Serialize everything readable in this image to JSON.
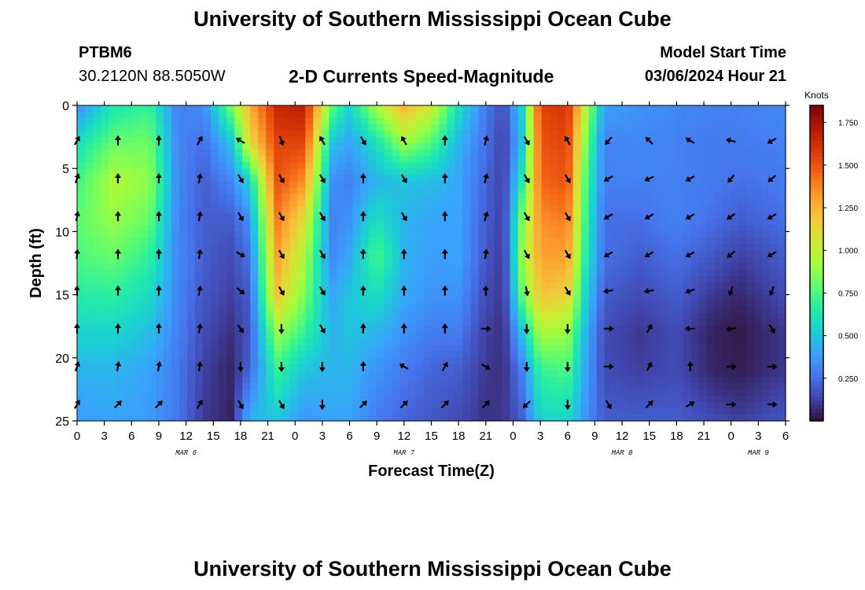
{
  "header": {
    "title": "University of Southern Mississippi Ocean Cube",
    "station": "PTBM6",
    "coords": "30.2120N  88.5050W",
    "subtitle": "2-D Currents Speed-Magnitude",
    "model_start_label": "Model Start Time",
    "model_start_value": "03/06/2024 Hour 21"
  },
  "footer": {
    "title": "University of Southern Mississippi Ocean Cube"
  },
  "chart_data": {
    "type": "heatmap",
    "title": "2-D Currents Speed-Magnitude",
    "xlabel": "Forecast Time(Z)",
    "ylabel": "Depth (ft)",
    "x_hours": [
      0,
      3,
      6,
      9,
      12,
      15,
      18,
      21,
      24,
      27,
      30,
      33,
      36,
      39,
      42,
      45,
      48,
      51,
      54,
      57,
      60,
      63,
      66,
      69,
      72,
      75,
      78
    ],
    "x_tick_labels": [
      "0",
      "3",
      "6",
      "9",
      "12",
      "15",
      "18",
      "21",
      "0",
      "3",
      "6",
      "9",
      "12",
      "15",
      "18",
      "21",
      "0",
      "3",
      "6",
      "9",
      "12",
      "15",
      "18",
      "21",
      "0",
      "3",
      "6"
    ],
    "date_labels": [
      {
        "text": "MAR 6",
        "hour": 12
      },
      {
        "text": "MAR 7",
        "hour": 36
      },
      {
        "text": "MAR 8",
        "hour": 60
      },
      {
        "text": "MAR 9",
        "hour": 75
      }
    ],
    "depth_ticks": [
      0,
      5,
      10,
      15,
      20,
      25
    ],
    "depth_labels": [
      "0",
      "5",
      "10",
      "15",
      "20",
      "25"
    ],
    "ylim": [
      0,
      25
    ],
    "xlim": [
      0,
      78
    ],
    "colorbar": {
      "label": "Knots",
      "min": 0,
      "max": 1.85,
      "ticks": [
        1.75,
        1.5,
        1.25,
        1.0,
        0.75,
        0.5,
        0.25
      ],
      "tick_labels": [
        "1.750",
        "1.500",
        "1.250",
        "1.000",
        "0.750",
        "0.500",
        "0.250"
      ],
      "colors": [
        "#30123b",
        "#4145ab",
        "#4675ed",
        "#39a2fc",
        "#1bcfd4",
        "#24eca6",
        "#61fc6c",
        "#a4fc3b",
        "#d1e834",
        "#f3c63a",
        "#fe9b2d",
        "#f36315",
        "#d93806",
        "#b11901",
        "#7a0402"
      ]
    },
    "speed_profiles": {
      "depths": [
        0,
        3,
        6,
        9,
        12,
        15,
        18,
        21,
        25
      ],
      "columns": [
        {
          "hour": 0,
          "speeds": [
            0.32,
            0.6,
            0.72,
            0.78,
            0.75,
            0.66,
            0.55,
            0.45,
            0.38
          ]
        },
        {
          "hour": 4,
          "speeds": [
            0.62,
            0.8,
            0.95,
            0.9,
            0.8,
            0.68,
            0.55,
            0.45,
            0.4
          ]
        },
        {
          "hour": 8,
          "speeds": [
            0.7,
            0.82,
            0.88,
            0.8,
            0.68,
            0.58,
            0.48,
            0.4,
            0.38
          ]
        },
        {
          "hour": 11,
          "speeds": [
            0.3,
            0.32,
            0.33,
            0.32,
            0.33,
            0.32,
            0.3,
            0.28,
            0.28
          ]
        },
        {
          "hour": 14,
          "speeds": [
            0.33,
            0.25,
            0.2,
            0.2,
            0.2,
            0.18,
            0.15,
            0.12,
            0.1
          ]
        },
        {
          "hour": 17,
          "speeds": [
            0.85,
            0.5,
            0.32,
            0.2,
            0.15,
            0.12,
            0.08,
            0.05,
            0.05
          ]
        },
        {
          "hour": 19,
          "speeds": [
            1.25,
            1.1,
            0.55,
            0.35,
            0.25,
            0.2,
            0.18,
            0.22,
            0.45
          ]
        },
        {
          "hour": 22,
          "speeds": [
            1.65,
            1.55,
            1.5,
            1.4,
            1.3,
            1.2,
            0.9,
            0.7,
            0.5
          ]
        },
        {
          "hour": 25,
          "speeds": [
            1.7,
            1.55,
            1.35,
            1.1,
            0.95,
            0.85,
            0.7,
            0.5,
            0.35
          ]
        },
        {
          "hour": 28,
          "speeds": [
            0.8,
            0.5,
            0.35,
            0.3,
            0.32,
            0.4,
            0.45,
            0.45,
            0.4
          ]
        },
        {
          "hour": 30,
          "speeds": [
            0.55,
            0.4,
            0.3,
            0.35,
            0.42,
            0.5,
            0.5,
            0.45,
            0.4
          ]
        },
        {
          "hour": 33,
          "speeds": [
            0.95,
            0.6,
            0.45,
            0.6,
            0.75,
            0.6,
            0.45,
            0.35,
            0.28
          ]
        },
        {
          "hour": 36,
          "speeds": [
            1.25,
            0.9,
            0.5,
            0.45,
            0.45,
            0.42,
            0.35,
            0.28,
            0.22
          ]
        },
        {
          "hour": 39,
          "speeds": [
            1.05,
            0.75,
            0.48,
            0.4,
            0.38,
            0.35,
            0.28,
            0.22,
            0.18
          ]
        },
        {
          "hour": 42,
          "speeds": [
            0.6,
            0.45,
            0.4,
            0.4,
            0.4,
            0.35,
            0.28,
            0.2,
            0.15
          ]
        },
        {
          "hour": 45,
          "speeds": [
            0.28,
            0.25,
            0.22,
            0.2,
            0.18,
            0.15,
            0.12,
            0.1,
            0.08
          ]
        },
        {
          "hour": 47,
          "speeds": [
            0.15,
            0.12,
            0.12,
            0.12,
            0.1,
            0.1,
            0.08,
            0.08,
            0.1
          ]
        },
        {
          "hour": 49,
          "speeds": [
            0.55,
            0.5,
            0.65,
            0.85,
            0.9,
            0.8,
            0.5,
            0.3,
            0.2
          ]
        },
        {
          "hour": 51,
          "speeds": [
            1.55,
            1.5,
            1.45,
            1.35,
            1.3,
            1.2,
            0.95,
            0.7,
            0.55
          ]
        },
        {
          "hour": 54,
          "speeds": [
            1.6,
            1.55,
            1.5,
            1.4,
            1.3,
            1.15,
            0.9,
            0.75,
            0.55
          ]
        },
        {
          "hour": 56,
          "speeds": [
            1.0,
            0.85,
            0.75,
            0.7,
            0.65,
            0.55,
            0.45,
            0.4,
            0.35
          ]
        },
        {
          "hour": 58,
          "speeds": [
            0.4,
            0.3,
            0.3,
            0.25,
            0.25,
            0.2,
            0.15,
            0.15,
            0.2
          ]
        },
        {
          "hour": 62,
          "speeds": [
            0.35,
            0.32,
            0.3,
            0.25,
            0.2,
            0.15,
            0.1,
            0.12,
            0.2
          ]
        },
        {
          "hour": 66,
          "speeds": [
            0.32,
            0.3,
            0.3,
            0.3,
            0.25,
            0.2,
            0.15,
            0.15,
            0.2
          ]
        },
        {
          "hour": 70,
          "speeds": [
            0.3,
            0.28,
            0.28,
            0.25,
            0.18,
            0.1,
            0.04,
            0.05,
            0.15
          ]
        },
        {
          "hour": 73,
          "speeds": [
            0.3,
            0.28,
            0.25,
            0.2,
            0.12,
            0.06,
            0.02,
            0.03,
            0.12
          ]
        },
        {
          "hour": 78,
          "speeds": [
            0.32,
            0.3,
            0.28,
            0.25,
            0.2,
            0.15,
            0.1,
            0.1,
            0.18
          ]
        }
      ]
    },
    "vectors": {
      "hours": [
        0,
        4.5,
        9,
        13.5,
        18,
        22.5,
        27,
        31.5,
        36,
        40.5,
        45,
        49.5,
        54,
        58.5,
        63,
        67.5,
        72,
        76.5
      ],
      "depths": [
        2.8,
        5.8,
        8.8,
        11.8,
        14.7,
        17.7,
        20.7,
        23.7
      ],
      "directions_deg": [
        [
          30,
          0,
          0,
          30,
          300,
          160,
          330,
          150,
          330,
          0,
          15,
          150,
          330,
          220,
          315,
          300,
          285,
          240
        ],
        [
          20,
          0,
          0,
          10,
          150,
          150,
          150,
          0,
          150,
          0,
          15,
          150,
          150,
          240,
          245,
          240,
          220,
          230
        ],
        [
          10,
          0,
          0,
          10,
          150,
          150,
          150,
          0,
          150,
          0,
          15,
          150,
          150,
          240,
          240,
          240,
          235,
          240
        ],
        [
          5,
          0,
          0,
          10,
          120,
          150,
          150,
          0,
          0,
          0,
          10,
          150,
          150,
          240,
          240,
          240,
          230,
          240
        ],
        [
          0,
          0,
          0,
          10,
          130,
          150,
          150,
          0,
          0,
          0,
          0,
          170,
          150,
          260,
          260,
          250,
          200,
          200
        ],
        [
          0,
          0,
          0,
          10,
          145,
          180,
          150,
          0,
          0,
          0,
          90,
          180,
          180,
          90,
          30,
          270,
          260,
          150
        ],
        [
          20,
          10,
          10,
          10,
          180,
          180,
          180,
          0,
          300,
          30,
          120,
          180,
          180,
          90,
          30,
          0,
          90,
          90
        ],
        [
          30,
          45,
          45,
          30,
          150,
          150,
          180,
          45,
          45,
          45,
          45,
          225,
          180,
          150,
          45,
          60,
          90,
          90
        ]
      ]
    }
  }
}
